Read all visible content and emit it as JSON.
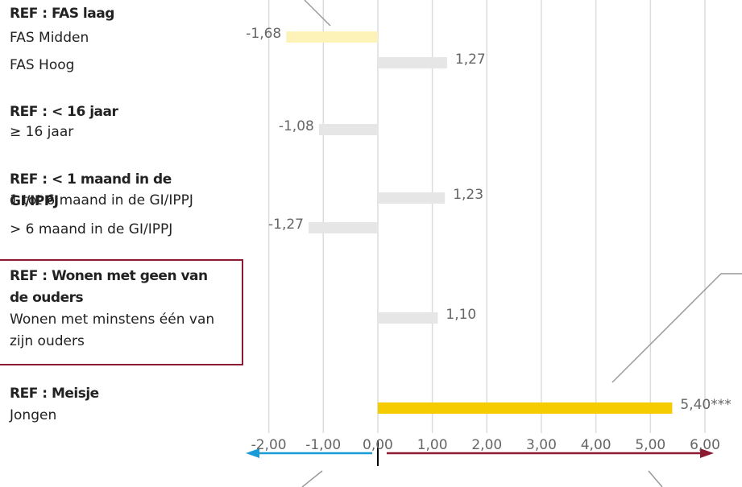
{
  "chart_data": {
    "type": "bar",
    "orientation": "horizontal",
    "groups": [
      {
        "reference": "REF : FAS laag",
        "categories": [
          "FAS Midden",
          "FAS Hoog"
        ],
        "values": [
          -1.68,
          1.27
        ],
        "value_labels": [
          "-1,68",
          "1,27"
        ],
        "colors": [
          "#fdf3b8",
          "#e6e6e6"
        ]
      },
      {
        "reference": "REF :  < 16 jaar",
        "categories": [
          "≥ 16 jaar"
        ],
        "values": [
          -1.08
        ],
        "value_labels": [
          "-1,08"
        ],
        "colors": [
          "#e6e6e6"
        ]
      },
      {
        "reference": "REF : < 1 maand in de GI/IPPJ",
        "categories": [
          "1 tot 6 maand in de GI/IPPJ",
          "> 6 maand in de GI/IPPJ"
        ],
        "values": [
          1.23,
          -1.27
        ],
        "value_labels": [
          "1,23",
          "-1,27"
        ],
        "colors": [
          "#e6e6e6",
          "#e6e6e6"
        ]
      },
      {
        "reference": "REF : Wonen met geen van de ouders",
        "categories": [
          "Wonen met minstens één van zijn ouders"
        ],
        "values": [
          1.1
        ],
        "value_labels": [
          "1,10"
        ],
        "colors": [
          "#e6e6e6"
        ],
        "boxed": true
      },
      {
        "reference": "REF : Meisje",
        "categories": [
          "Jongen"
        ],
        "values": [
          5.4
        ],
        "value_labels": [
          "5,40***"
        ],
        "colors": [
          "#f5cc00"
        ]
      }
    ],
    "xlim": [
      -2,
      6
    ],
    "xticks": [
      {
        "value": -2,
        "label": "-2,00"
      },
      {
        "value": -1,
        "label": "-1,00"
      },
      {
        "value": 0,
        "label": "0,00"
      },
      {
        "value": 1,
        "label": "1,00"
      },
      {
        "value": 2,
        "label": "2,00"
      },
      {
        "value": 3,
        "label": "3,00"
      },
      {
        "value": 4,
        "label": "4,00"
      },
      {
        "value": 5,
        "label": "5,00"
      },
      {
        "value": 6,
        "label": "6,00"
      }
    ],
    "grid": true
  }
}
